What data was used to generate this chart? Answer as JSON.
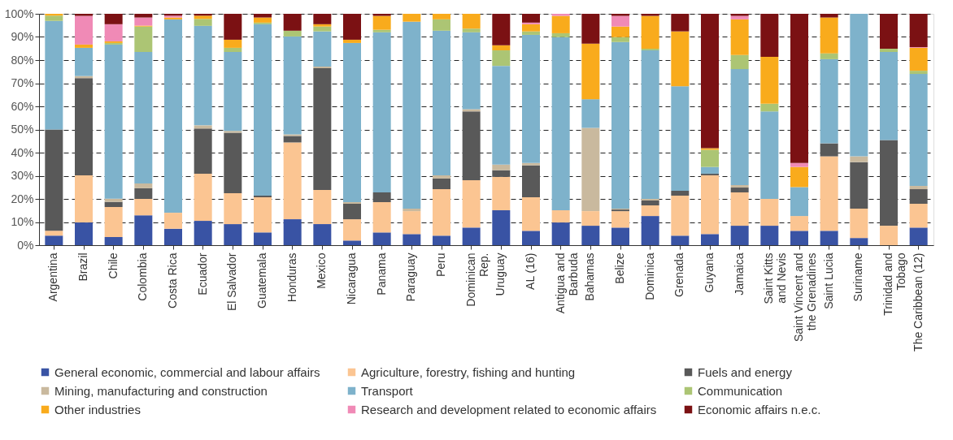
{
  "chart_data": {
    "type": "bar",
    "stacked": true,
    "grid": "y",
    "legend": "bottom",
    "categories": [
      "Argentina",
      "Brazil",
      "Chile",
      "Colombia",
      "Costa Rica",
      "Ecuador",
      "El Salvador",
      "Guatemala",
      "Honduras",
      "Mexico",
      "Nicaragua",
      "Panama",
      "Paraguay",
      "Peru",
      "Dominican\nRep.",
      "Uruguay",
      "AL (16)",
      "Antigua and\nBarbuda",
      "Bahamas",
      "Belize",
      "Dominica",
      "Grenada",
      "Guyana",
      "Jamaica",
      "Saint Kitts\nand Nevis",
      "Saint Vincent and\nthe Grenadines",
      "Saint Lucia",
      "Suriname",
      "Trinidad and\nTobago",
      "The Caribbean (12)"
    ],
    "ylim": [
      0,
      100
    ],
    "yticks": [
      {
        "value": 0,
        "label": "0%"
      },
      {
        "value": 10,
        "label": "10%"
      },
      {
        "value": 20,
        "label": "20%"
      },
      {
        "value": 30,
        "label": "30%"
      },
      {
        "value": 40,
        "label": "40%"
      },
      {
        "value": 50,
        "label": "50%"
      },
      {
        "value": 60,
        "label": "60%"
      },
      {
        "value": 70,
        "label": "70%"
      },
      {
        "value": 80,
        "label": "80%"
      },
      {
        "value": 90,
        "label": "90%"
      },
      {
        "value": 100,
        "label": "100%"
      }
    ],
    "series": [
      {
        "name": "General economic, commercial and labour affairs",
        "color": "#3953a4",
        "values": [
          4.1,
          9.8,
          3.5,
          12.9,
          7.1,
          10.5,
          9.1,
          5.5,
          11.2,
          9.1,
          2,
          5.5,
          4.8,
          4.1,
          7.6,
          15.1,
          6.2,
          9.8,
          8.4,
          7.6,
          12.6,
          4.1,
          4.8,
          8.4,
          8.4,
          6.2,
          6.2,
          3.1,
          0,
          7.6
        ]
      },
      {
        "name": "Agriculture, forestry, fishing and hunting",
        "color": "#fbc592",
        "values": [
          2.1,
          20.4,
          13,
          7.1,
          6.9,
          20.4,
          13.4,
          15.2,
          33.2,
          14.8,
          9.2,
          13.1,
          9.9,
          20.1,
          20.5,
          14.4,
          14.5,
          5.3,
          6.3,
          7.1,
          4.6,
          17.3,
          25.4,
          14.4,
          11.6,
          6.4,
          32.2,
          12.7,
          8.4,
          10.3
        ]
      },
      {
        "name": "Fuels and energy",
        "color": "#595959",
        "values": [
          43.8,
          42,
          2.2,
          4.6,
          0,
          19.5,
          26.1,
          0.7,
          2.8,
          52.6,
          6.7,
          4.2,
          0,
          4.6,
          29.7,
          2.9,
          13.8,
          0,
          0,
          0.7,
          2.1,
          2.1,
          0.7,
          2.1,
          0,
          0,
          5.6,
          20.1,
          37,
          6.3
        ]
      },
      {
        "name": "Mining, manufacturing and construction",
        "color": "#c9b99e",
        "values": [
          0,
          0.9,
          1.4,
          2.1,
          0,
          1.4,
          0.8,
          0,
          0.7,
          0.7,
          0.7,
          0,
          1.1,
          1.4,
          1,
          2.4,
          1,
          0,
          36,
          0.4,
          0.7,
          0,
          0,
          1.1,
          0,
          0,
          0,
          2.5,
          0,
          1.4
        ]
      },
      {
        "name": "Transport",
        "color": "#7eb2cb",
        "values": [
          46.9,
          12.2,
          66.6,
          56.8,
          83.6,
          43,
          34.1,
          74.1,
          42.3,
          15.2,
          68.8,
          69.2,
          80.8,
          62.5,
          33.2,
          42.7,
          55.4,
          74.8,
          12.4,
          72,
          64.2,
          45.2,
          2.9,
          50.1,
          37.8,
          12.5,
          36.4,
          61.6,
          38.1,
          48.4
        ]
      },
      {
        "name": "Communication",
        "color": "#acc574",
        "values": [
          2.3,
          0,
          0.7,
          11,
          0,
          3,
          1.8,
          0.7,
          2.5,
          2.1,
          0,
          1.1,
          0,
          4.9,
          1.6,
          6.7,
          1.5,
          1.7,
          0,
          2.1,
          0.7,
          0,
          7.4,
          6.1,
          3.3,
          0,
          2.5,
          0,
          1.4,
          1.4
        ]
      },
      {
        "name": "Other industries",
        "color": "#f9ab1c",
        "values": [
          0.8,
          1.4,
          0.7,
          0.4,
          0.8,
          1.4,
          3.5,
          2.2,
          0,
          1,
          1.4,
          6,
          3.4,
          2.4,
          6.4,
          2.2,
          3.1,
          7.5,
          24,
          4.6,
          14.2,
          23.7,
          0.7,
          15.4,
          20.3,
          8.7,
          15.5,
          0,
          0,
          9.9
        ]
      },
      {
        "name": "Research and development related to economic affairs",
        "color": "#f08ab6",
        "values": [
          0,
          12.4,
          7.4,
          3.5,
          0.8,
          0,
          0,
          0,
          0,
          0,
          0,
          0,
          0,
          0,
          0,
          0,
          0.7,
          0.9,
          0,
          4.6,
          0,
          0,
          0,
          1.5,
          0,
          1.7,
          0,
          0,
          0,
          0.3
        ]
      },
      {
        "name": "Economic affairs n.e.c.",
        "color": "#7b1113",
        "values": [
          0,
          0.9,
          4.5,
          1.6,
          0.8,
          0.8,
          11.2,
          1.6,
          7.3,
          4.5,
          11.2,
          0.9,
          0,
          0,
          0,
          13.6,
          3.8,
          0,
          12.9,
          0.9,
          0.9,
          7.6,
          58.1,
          0.9,
          18.6,
          64.5,
          1.6,
          0,
          15.1,
          14.4
        ]
      }
    ]
  }
}
